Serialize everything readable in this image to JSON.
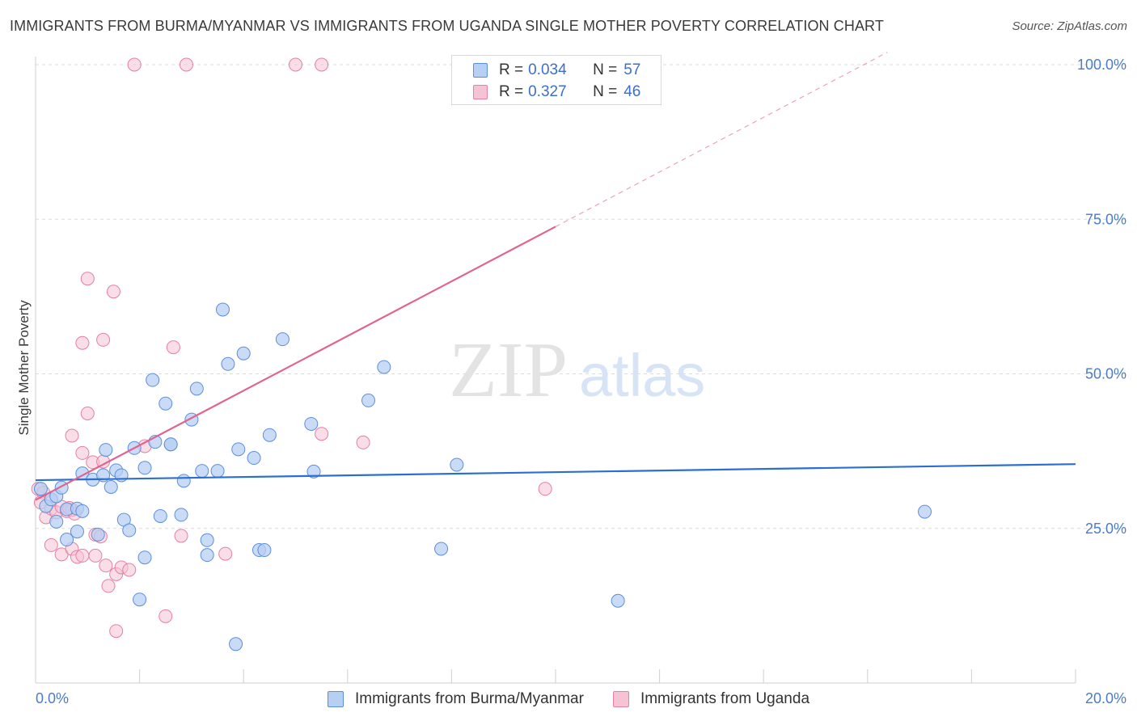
{
  "title": "IMMIGRANTS FROM BURMA/MYANMAR VS IMMIGRANTS FROM UGANDA SINGLE MOTHER POVERTY CORRELATION CHART",
  "source": "Source: ZipAtlas.com",
  "watermark": {
    "zip": "ZIP",
    "atlas": "atlas"
  },
  "legend": {
    "series1": {
      "r_label": "R =",
      "r_value": "0.034",
      "n_label": "N =",
      "n_value": "57"
    },
    "series2": {
      "r_label": "R =",
      "r_value": "0.327",
      "n_label": "N =",
      "n_value": "46"
    }
  },
  "colors": {
    "blue_fill": "#b7cff3",
    "blue_stroke": "#5b8fdc",
    "blue_line": "#2a6fce",
    "pink_fill": "#f6c3d4",
    "pink_stroke": "#e57fa3",
    "pink_line": "#e0648f"
  },
  "chart_data": {
    "type": "scatter",
    "title": "IMMIGRANTS FROM BURMA/MYANMAR VS IMMIGRANTS FROM UGANDA SINGLE MOTHER POVERTY CORRELATION CHART",
    "xlabel": "",
    "ylabel": "Single Mother Poverty",
    "xlim": [
      0,
      20
    ],
    "ylim": [
      0,
      102
    ],
    "x_tick_labels": [
      "0.0%",
      "20.0%"
    ],
    "y_ticks": [
      25,
      50,
      75,
      100
    ],
    "y_tick_labels": [
      "25.0%",
      "50.0%",
      "75.0%",
      "100.0%"
    ],
    "series": [
      {
        "name": "Immigrants from Burma/Myanmar",
        "color": "blue",
        "trend": {
          "x0": 0,
          "y0": 32.8,
          "x1": 20,
          "y1": 35.4,
          "dash_from": null
        },
        "points": [
          [
            0.1,
            31.4
          ],
          [
            0.2,
            28.6
          ],
          [
            0.3,
            29.7
          ],
          [
            0.4,
            30.2
          ],
          [
            0.5,
            31.6
          ],
          [
            0.4,
            26.1
          ],
          [
            0.6,
            28.1
          ],
          [
            0.8,
            28.2
          ],
          [
            0.9,
            27.8
          ],
          [
            0.8,
            24.5
          ],
          [
            0.6,
            23.2
          ],
          [
            0.9,
            33.9
          ],
          [
            1.1,
            32.9
          ],
          [
            1.3,
            33.6
          ],
          [
            1.35,
            37.7
          ],
          [
            1.45,
            31.7
          ],
          [
            1.55,
            34.4
          ],
          [
            1.65,
            33.6
          ],
          [
            1.7,
            26.4
          ],
          [
            1.8,
            24.7
          ],
          [
            1.9,
            38.0
          ],
          [
            2.1,
            34.8
          ],
          [
            2.1,
            20.3
          ],
          [
            2.0,
            13.5
          ],
          [
            2.25,
            49.0
          ],
          [
            2.3,
            39.0
          ],
          [
            2.4,
            27.0
          ],
          [
            2.5,
            45.2
          ],
          [
            2.6,
            38.6
          ],
          [
            2.6,
            38.6
          ],
          [
            2.8,
            27.2
          ],
          [
            2.85,
            32.7
          ],
          [
            3.0,
            42.6
          ],
          [
            3.1,
            47.6
          ],
          [
            3.2,
            34.3
          ],
          [
            3.3,
            23.1
          ],
          [
            3.3,
            20.7
          ],
          [
            3.5,
            34.3
          ],
          [
            3.6,
            60.4
          ],
          [
            3.7,
            51.6
          ],
          [
            3.9,
            37.8
          ],
          [
            4.0,
            53.3
          ],
          [
            4.2,
            36.4
          ],
          [
            4.3,
            21.5
          ],
          [
            4.4,
            21.5
          ],
          [
            4.5,
            40.1
          ],
          [
            4.75,
            55.6
          ],
          [
            5.3,
            41.9
          ],
          [
            5.35,
            34.2
          ],
          [
            6.4,
            45.7
          ],
          [
            6.7,
            51.1
          ],
          [
            7.8,
            21.7
          ],
          [
            8.1,
            35.3
          ],
          [
            11.2,
            13.3
          ],
          [
            17.1,
            27.7
          ],
          [
            3.85,
            6.3
          ],
          [
            1.2,
            24.0
          ]
        ]
      },
      {
        "name": "Immigrants from Uganda",
        "color": "pink",
        "trend": {
          "x0": 0,
          "y0": 29.6,
          "x1": 20,
          "y1": 118,
          "dash_from": 10
        },
        "points": [
          [
            0.05,
            31.4
          ],
          [
            0.15,
            30.8
          ],
          [
            0.2,
            26.8
          ],
          [
            0.3,
            28.2
          ],
          [
            0.4,
            27.6
          ],
          [
            0.5,
            28.5
          ],
          [
            0.6,
            27.8
          ],
          [
            0.7,
            28.0
          ],
          [
            0.75,
            27.4
          ],
          [
            0.3,
            22.3
          ],
          [
            0.5,
            20.8
          ],
          [
            0.7,
            21.7
          ],
          [
            0.8,
            20.4
          ],
          [
            0.9,
            20.6
          ],
          [
            0.7,
            40.0
          ],
          [
            0.9,
            37.2
          ],
          [
            0.9,
            55.0
          ],
          [
            1.0,
            43.6
          ],
          [
            1.1,
            35.7
          ],
          [
            1.15,
            24.0
          ],
          [
            1.25,
            23.7
          ],
          [
            1.15,
            20.6
          ],
          [
            1.3,
            35.8
          ],
          [
            1.35,
            19.0
          ],
          [
            1.4,
            15.7
          ],
          [
            1.55,
            17.6
          ],
          [
            1.65,
            18.7
          ],
          [
            1.8,
            18.3
          ],
          [
            1.55,
            8.4
          ],
          [
            1.0,
            65.4
          ],
          [
            1.5,
            63.3
          ],
          [
            1.3,
            55.5
          ],
          [
            1.9,
            100.0
          ],
          [
            2.9,
            100.0
          ],
          [
            5.0,
            100.0
          ],
          [
            5.5,
            100.0
          ],
          [
            2.1,
            38.3
          ],
          [
            2.65,
            54.3
          ],
          [
            2.8,
            23.8
          ],
          [
            3.65,
            20.9
          ],
          [
            2.5,
            10.8
          ],
          [
            5.5,
            40.3
          ],
          [
            6.3,
            38.9
          ],
          [
            9.8,
            31.4
          ],
          [
            0.65,
            28.3
          ],
          [
            0.1,
            29.2
          ]
        ]
      }
    ]
  },
  "bottom_legend": {
    "item1": "Immigrants from Burma/Myanmar",
    "item2": "Immigrants from Uganda"
  }
}
